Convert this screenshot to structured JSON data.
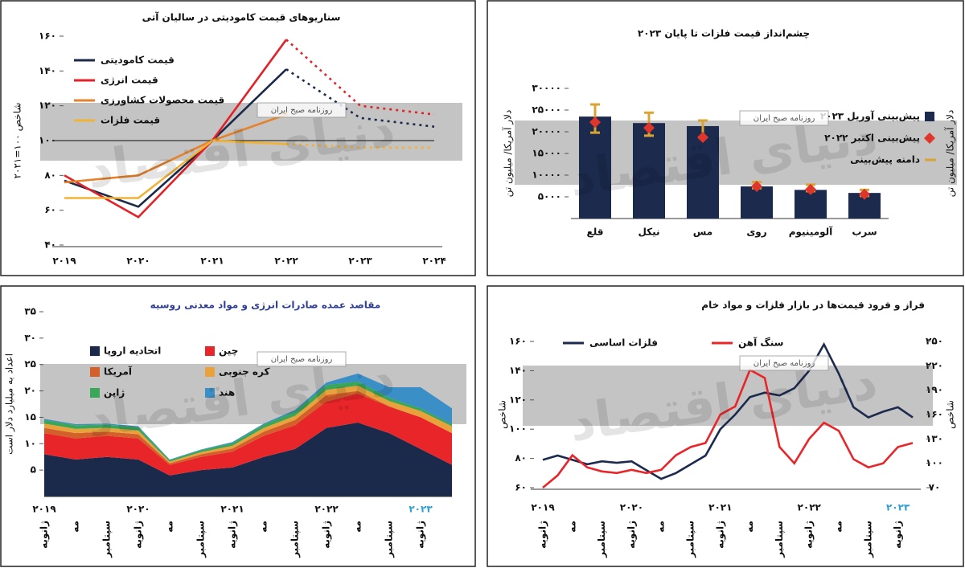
{
  "watermark": {
    "text": "دنیای اقتصاد",
    "tag": "روزنامه صبح ایران"
  },
  "chart_data": [
    {
      "type": "line",
      "title": "سناریوهای قیمت کامودیتی در سالیان آتی",
      "y_label": "شاخص ۱۰۰=۲۰۲۱",
      "categories": [
        "۲۰۱۹",
        "۲۰۲۰",
        "۲۰۲۱",
        "۲۰۲۲",
        "۲۰۲۳",
        "۲۰۲۴"
      ],
      "forecast_from_index": 3,
      "reference_line": 100,
      "ylim": [
        40,
        160
      ],
      "yticks": [
        {
          "value": 40,
          "label": "۴۰"
        },
        {
          "value": 60,
          "label": "۶۰"
        },
        {
          "value": 80,
          "label": "۸۰"
        },
        {
          "value": 100,
          "label": "۱۰۰"
        },
        {
          "value": 120,
          "label": "۱۲۰"
        },
        {
          "value": 140,
          "label": "۱۴۰"
        },
        {
          "value": 160,
          "label": "۱۶۰"
        }
      ],
      "series": [
        {
          "name": "قیمت کامودیتی",
          "color": "#1b2a4a",
          "values": [
            77,
            62,
            100,
            141,
            113,
            108
          ]
        },
        {
          "name": "قیمت انرژی",
          "color": "#e32228",
          "values": [
            80,
            56,
            100,
            158,
            120,
            115
          ]
        },
        {
          "name": "قیمت محصولات کشاورزی",
          "color": "#e5822b",
          "values": [
            76,
            80,
            100,
            115,
            null,
            null
          ]
        },
        {
          "name": "قیمت فلزات",
          "color": "#f2b233",
          "values": [
            67,
            67,
            100,
            98,
            96,
            96
          ]
        }
      ]
    },
    {
      "type": "bar",
      "title": "چشم‌انداز قیمت فلزات تا پایان ۲۰۲۳",
      "y_label": "دلار آمریکا/ میلیون تن",
      "categories": [
        "قلع",
        "نیکل",
        "مس",
        "روی",
        "آلومینیوم",
        "سرب"
      ],
      "ylim": [
        0,
        30000
      ],
      "yticks": [
        {
          "value": 5000,
          "label": "۵۰۰۰"
        },
        {
          "value": 10000,
          "label": "۱۰۰۰۰"
        },
        {
          "value": 15000,
          "label": "۱۵۰۰۰"
        },
        {
          "value": 20000,
          "label": "۲۰۰۰۰"
        },
        {
          "value": 25000,
          "label": "۲۵۰۰۰"
        },
        {
          "value": 30000,
          "label": "۳۰۰۰۰"
        }
      ],
      "series": [
        {
          "name": "پیش‌بینی آوریل ۲۰۲۳",
          "color": "#1c2a4e",
          "values": [
            23500,
            22000,
            21300,
            7400,
            6600,
            5900
          ]
        },
        {
          "name": "پیش‌بینی اکتبر ۲۰۲۲",
          "color": "#e0352b",
          "values": [
            22200,
            20900,
            18700,
            7400,
            6700,
            5600
          ]
        },
        {
          "name": "دامنه پیش‌بینی",
          "color": "#d9a431",
          "low": [
            19800,
            19100,
            18700,
            7000,
            6300,
            5200
          ],
          "high": [
            26300,
            24400,
            22600,
            8400,
            7800,
            6600
          ]
        }
      ]
    },
    {
      "type": "area",
      "title": "مقاصد عمده صادرات انرژی و مواد معدنی روسیه",
      "y_label": "اعداد به میلیارد دلار است",
      "categories": [
        "ژانویه",
        "مه",
        "سپتامبر",
        "ژانویه",
        "مه",
        "سپتامبر",
        "ژانویه",
        "مه",
        "سپتامبر",
        "ژانویه",
        "مه",
        "سپتامبر",
        "ژانویه",
        null
      ],
      "year_labels": [
        "۲۰۱۹",
        "۲۰۲۰",
        "۲۰۲۱",
        "۲۰۲۲",
        "۲۰۲۳"
      ],
      "ylim": [
        0,
        35
      ],
      "yticks": [
        {
          "value": 5,
          "label": "۵"
        },
        {
          "value": 10,
          "label": "۱۰"
        },
        {
          "value": 15,
          "label": "۱۵"
        },
        {
          "value": 20,
          "label": "۲۰"
        },
        {
          "value": 25,
          "label": "۲۵"
        },
        {
          "value": 30,
          "label": "۳۰"
        },
        {
          "value": 35,
          "label": "۳۵"
        }
      ],
      "series": [
        {
          "name": "اتحادیه اروپا",
          "color": "#1b2a4a",
          "values": [
            8,
            7,
            7.5,
            7,
            4,
            5,
            5.5,
            7.5,
            9,
            13,
            14,
            12,
            9,
            6
          ]
        },
        {
          "name": "چین",
          "color": "#e8262a",
          "values": [
            4,
            4,
            4,
            4,
            2,
            2.5,
            3,
            4,
            4.5,
            5,
            5.5,
            5,
            6,
            6
          ]
        },
        {
          "name": "آمریکا",
          "color": "#d35f2a",
          "values": [
            1,
            1,
            0.8,
            0.8,
            0.3,
            0.5,
            0.6,
            0.8,
            1,
            1.2,
            0.5,
            0.1,
            0,
            0
          ]
        },
        {
          "name": "کره جنوبی",
          "color": "#e9a23b",
          "values": [
            0.8,
            0.8,
            0.7,
            0.7,
            0.3,
            0.4,
            0.5,
            0.7,
            0.8,
            1,
            1,
            1,
            1.2,
            1.3
          ]
        },
        {
          "name": "ژاپن",
          "color": "#3aa657",
          "values": [
            0.7,
            0.7,
            0.6,
            0.6,
            0.3,
            0.4,
            0.5,
            0.6,
            0.8,
            0.9,
            0.8,
            0.6,
            0.5,
            0.4
          ]
        },
        {
          "name": "هند",
          "color": "#3a8fc7",
          "values": [
            0.2,
            0.2,
            0.2,
            0.2,
            0.1,
            0.1,
            0.2,
            0.2,
            0.3,
            0.5,
            1.5,
            2,
            4,
            3
          ]
        }
      ]
    },
    {
      "type": "line",
      "title": "فراز و فرود قیمت‌ها در بازار فلزات و مواد خام",
      "y_label": "شاخص",
      "categories": [
        "ژانویه",
        null,
        "مه",
        null,
        "سپتامبر",
        null,
        "ژانویه",
        null,
        "مه",
        null,
        "سپتامبر",
        null,
        "ژانویه",
        null,
        "مه",
        null,
        "سپتامبر",
        null,
        "ژانویه",
        null,
        "مه",
        null,
        "سپتامبر",
        null,
        "ژانویه",
        null
      ],
      "year_labels": [
        "۲۰۱۹",
        "۲۰۲۰",
        "۲۰۲۱",
        "۲۰۲۲",
        "۲۰۲۳"
      ],
      "ylim": [
        60,
        160
      ],
      "yticks": [
        {
          "value": 60,
          "label": "۶۰"
        },
        {
          "value": 80,
          "label": "۸۰"
        },
        {
          "value": 100,
          "label": "۱۰۰"
        },
        {
          "value": 120,
          "label": "۱۲۰"
        },
        {
          "value": 140,
          "label": "۱۴۰"
        },
        {
          "value": 160,
          "label": "۱۶۰"
        }
      ],
      "y2lim": [
        70,
        250
      ],
      "y2ticks": [
        {
          "value": 70,
          "label": "۷۰"
        },
        {
          "value": 100,
          "label": "۱۰۰"
        },
        {
          "value": 130,
          "label": "۱۳۰"
        },
        {
          "value": 160,
          "label": "۱۶۰"
        },
        {
          "value": 190,
          "label": "۱۹۰"
        },
        {
          "value": 220,
          "label": "۲۲۰"
        },
        {
          "value": 250,
          "label": "۲۵۰"
        }
      ],
      "series": [
        {
          "name": "فلزات اساسی",
          "color": "#1c2a4e",
          "values": [
            79,
            82,
            79,
            76,
            78,
            77,
            78,
            72,
            66,
            70,
            76,
            82,
            100,
            110,
            122,
            125,
            123,
            128,
            140,
            158,
            138,
            115,
            108,
            112,
            115,
            108
          ]
        },
        {
          "name": "سنگ آهن",
          "color": "#e8262a",
          "axis": "y2",
          "values": [
            70,
            85,
            110,
            95,
            90,
            88,
            92,
            88,
            92,
            110,
            120,
            125,
            160,
            170,
            215,
            205,
            120,
            100,
            130,
            150,
            140,
            105,
            95,
            100,
            120,
            125
          ]
        }
      ]
    }
  ]
}
